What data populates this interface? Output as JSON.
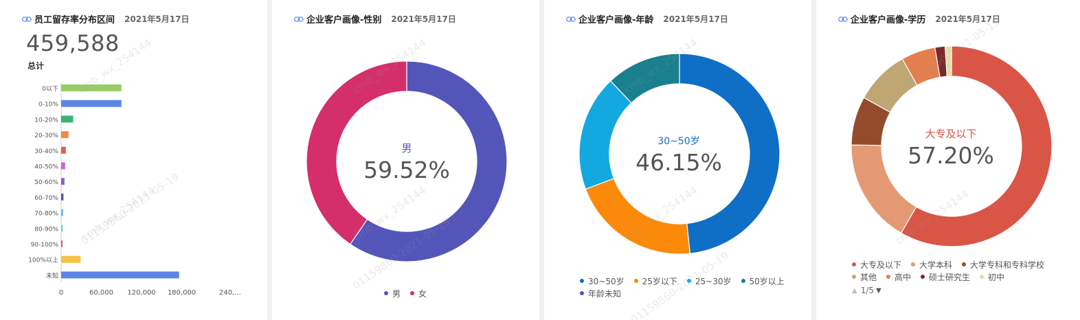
{
  "cards": [
    {
      "title": "员工留存率分布区间",
      "date": "2021年5月17日"
    },
    {
      "title": "企业客户画像-性别",
      "date": "2021年5月17日"
    },
    {
      "title": "企业客户画像-年龄",
      "date": "2021年5月17日"
    },
    {
      "title": "企业客户画像-学历",
      "date": "2021年5月17日"
    }
  ],
  "kpi": {
    "value": "459,588",
    "label": "总计"
  },
  "chart_data": [
    {
      "type": "bar",
      "orientation": "horizontal",
      "categories": [
        "0以下",
        "0-10%",
        "10-20%",
        "20-30%",
        "30-40%",
        "40-50%",
        "50-60%",
        "60-70%",
        "70-80%",
        "80-90%",
        "90-100%",
        "100%以上",
        "未知"
      ],
      "values": [
        90000,
        90000,
        18000,
        11000,
        7000,
        6000,
        5000,
        3500,
        3000,
        2500,
        2000,
        29000,
        176000
      ],
      "colors": [
        "#99cc66",
        "#5b86e5",
        "#3cb371",
        "#f08a44",
        "#e85a5a",
        "#cc66cc",
        "#8e5bd6",
        "#5555bb",
        "#66bbee",
        "#77d4d4",
        "#e0507a",
        "#f5c242",
        "#5b86e5"
      ],
      "xticks": [
        "0",
        "60,000",
        "120,000",
        "180,000",
        "240,..."
      ],
      "xlim": [
        0,
        240000
      ],
      "grid": false
    },
    {
      "type": "pie",
      "donut": true,
      "labels": [
        "男",
        "女"
      ],
      "values": [
        59.52,
        40.48
      ],
      "colors": [
        "#5356b8",
        "#d42f6b"
      ],
      "center_label": "男",
      "center_value": "59.52%"
    },
    {
      "type": "pie",
      "donut": true,
      "labels": [
        "30~50岁",
        "25岁以下",
        "25~30岁",
        "50岁以上",
        "年龄未知"
      ],
      "values": [
        46.15,
        20.0,
        17.85,
        11.5,
        0
      ],
      "colors": [
        "#0f6fc6",
        "#fb8a0b",
        "#14a8e0",
        "#1a7f8f",
        "#5356b8"
      ],
      "center_label": "30~50岁",
      "center_value": "46.15%"
    },
    {
      "type": "pie",
      "donut": true,
      "labels": [
        "大专及以下",
        "大学本科",
        "大学专科和专科学校",
        "其他",
        "高中",
        "硕士研究生",
        "初中"
      ],
      "values": [
        57.2,
        16.5,
        7.7,
        8.6,
        5.4,
        1.6,
        1.0
      ],
      "colors": [
        "#d95545",
        "#e39a74",
        "#944b2c",
        "#bfa673",
        "#e47e4c",
        "#7a2a2a",
        "#e8dcaa"
      ],
      "center_label": "大专及以下",
      "center_value": "57.20%",
      "pager": "1/5"
    }
  ],
  "watermarks": [
    "cmb_wx_254144",
    "01159860-2021-05-19"
  ]
}
